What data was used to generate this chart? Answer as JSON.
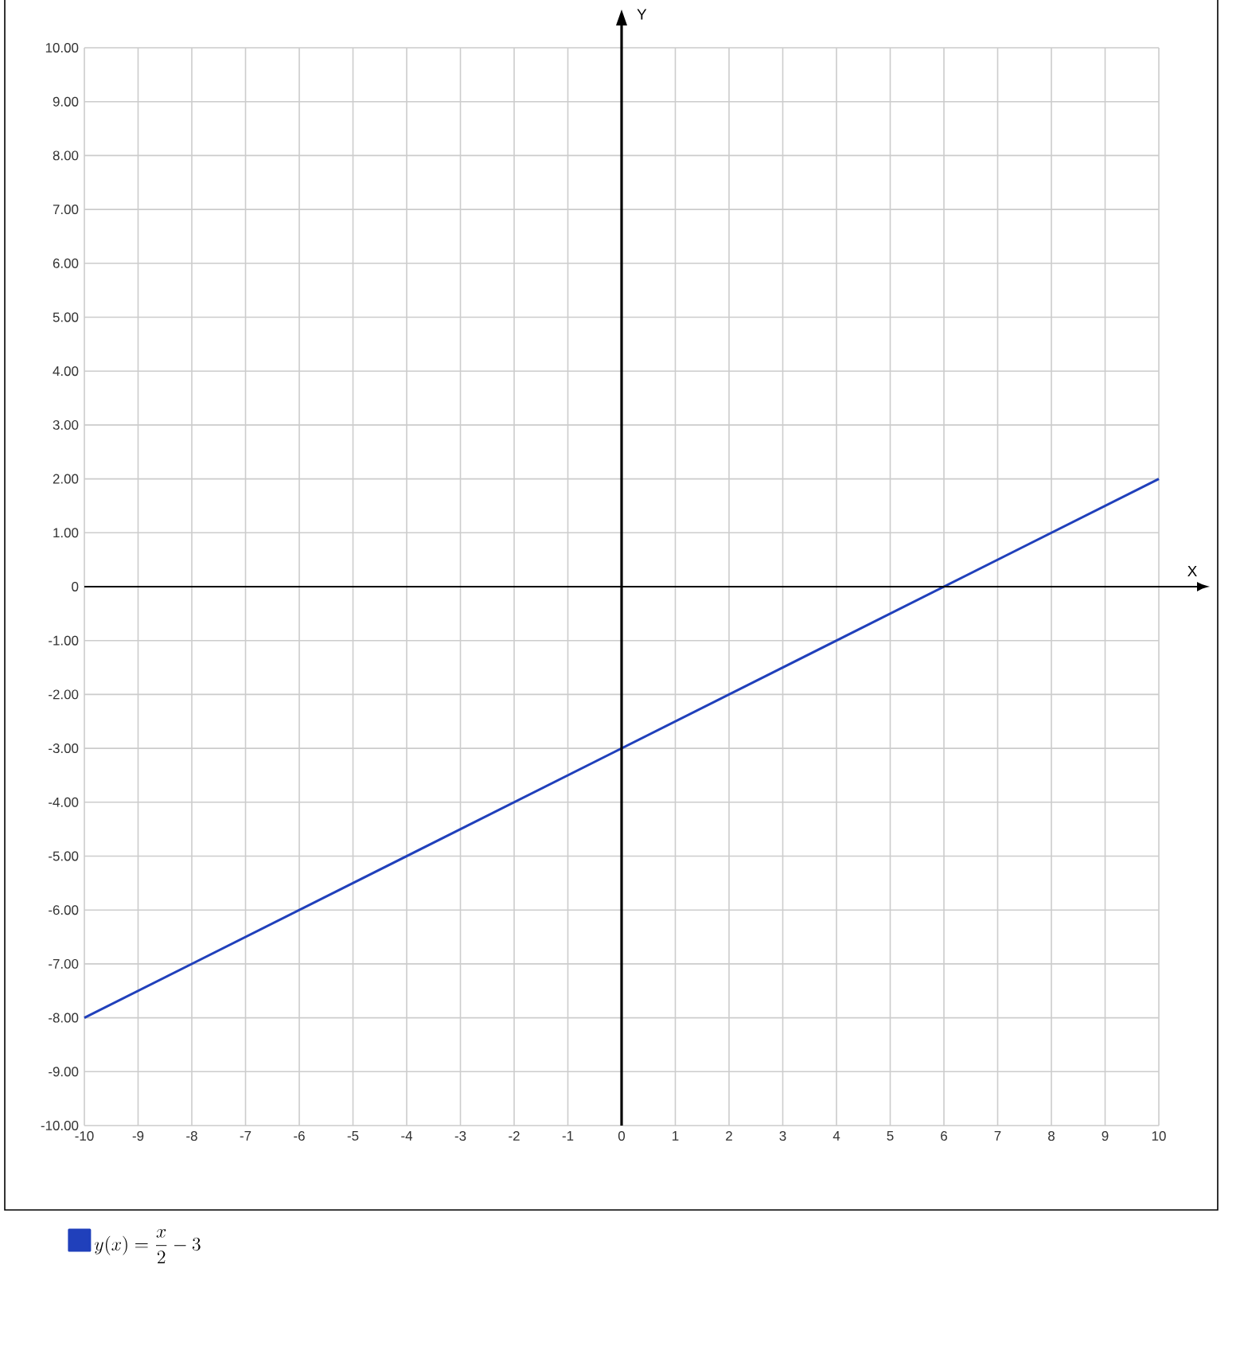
{
  "chart_data": {
    "type": "line",
    "xlabel": "X",
    "ylabel": "Y",
    "series": [
      {
        "name": "y(x) = \\frac{x}{2} - 3",
        "color": "#2040bb",
        "x": [
          -10,
          10
        ],
        "values": [
          -8,
          2
        ]
      }
    ],
    "xlim": [
      -10,
      10
    ],
    "ylim": [
      -10,
      10
    ],
    "xticks": [
      -10,
      -9,
      -8,
      -7,
      -6,
      -5,
      -4,
      -3,
      -2,
      -1,
      0,
      1,
      2,
      3,
      4,
      5,
      6,
      7,
      8,
      9,
      10
    ],
    "yticks": [
      {
        "value": -10,
        "label": "-10.00"
      },
      {
        "value": -9,
        "label": "-9.00"
      },
      {
        "value": -8,
        "label": "-8.00"
      },
      {
        "value": -7,
        "label": "-7.00"
      },
      {
        "value": -6,
        "label": "-6.00"
      },
      {
        "value": -5,
        "label": "-5.00"
      },
      {
        "value": -4,
        "label": "-4.00"
      },
      {
        "value": -3,
        "label": "-3.00"
      },
      {
        "value": -2,
        "label": "-2.00"
      },
      {
        "value": -1,
        "label": "-1.00"
      },
      0,
      {
        "value": 1,
        "label": "1.00"
      },
      {
        "value": 2,
        "label": "2.00"
      },
      {
        "value": 3,
        "label": "3.00"
      },
      {
        "value": 4,
        "label": "4.00"
      },
      {
        "value": 5,
        "label": "5.00"
      },
      {
        "value": 6,
        "label": "6.00"
      },
      {
        "value": 7,
        "label": "7.00"
      },
      {
        "value": 8,
        "label": "8.00"
      },
      {
        "value": 9,
        "label": "9.00"
      },
      {
        "value": 10,
        "label": "10.00"
      }
    ],
    "grid": true,
    "legend": "bottom",
    "marker": "none",
    "line_style": "solid"
  }
}
